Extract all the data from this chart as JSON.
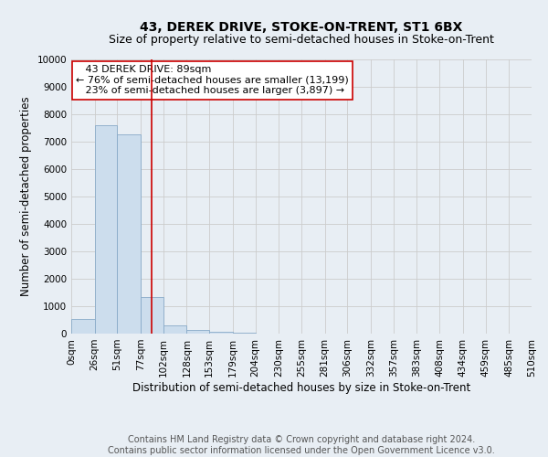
{
  "title": "43, DEREK DRIVE, STOKE-ON-TRENT, ST1 6BX",
  "subtitle": "Size of property relative to semi-detached houses in Stoke-on-Trent",
  "xlabel": "Distribution of semi-detached houses by size in Stoke-on-Trent",
  "ylabel": "Number of semi-detached properties",
  "footer_line1": "Contains HM Land Registry data © Crown copyright and database right 2024.",
  "footer_line2": "Contains public sector information licensed under the Open Government Licence v3.0.",
  "annotation_line1": "   43 DEREK DRIVE: 89sqm",
  "annotation_line2": "← 76% of semi-detached houses are smaller (13,199)",
  "annotation_line3": "   23% of semi-detached houses are larger (3,897) →",
  "property_size_sqm": 89,
  "bin_edges": [
    0,
    26,
    51,
    77,
    102,
    128,
    153,
    179,
    204,
    230,
    255,
    281,
    306,
    332,
    357,
    383,
    408,
    434,
    459,
    485,
    510
  ],
  "bin_labels": [
    "0sqm",
    "26sqm",
    "51sqm",
    "77sqm",
    "102sqm",
    "128sqm",
    "153sqm",
    "179sqm",
    "204sqm",
    "230sqm",
    "255sqm",
    "281sqm",
    "306sqm",
    "332sqm",
    "357sqm",
    "383sqm",
    "408sqm",
    "434sqm",
    "459sqm",
    "485sqm",
    "510sqm"
  ],
  "bar_values": [
    550,
    7600,
    7250,
    1350,
    300,
    150,
    80,
    50,
    0,
    0,
    0,
    0,
    0,
    0,
    0,
    0,
    0,
    0,
    0,
    0
  ],
  "bar_color": "#ccdded",
  "bar_edge_color": "#88aac8",
  "vline_color": "#cc0000",
  "vline_x": 89,
  "ylim": [
    0,
    10000
  ],
  "yticks": [
    0,
    1000,
    2000,
    3000,
    4000,
    5000,
    6000,
    7000,
    8000,
    9000,
    10000
  ],
  "grid_color": "#cccccc",
  "bg_color": "#e8eef4",
  "annotation_box_color": "#ffffff",
  "annotation_box_edge": "#cc0000",
  "title_fontsize": 10,
  "subtitle_fontsize": 9,
  "axis_label_fontsize": 8.5,
  "tick_fontsize": 7.5,
  "annotation_fontsize": 8,
  "footer_fontsize": 7
}
